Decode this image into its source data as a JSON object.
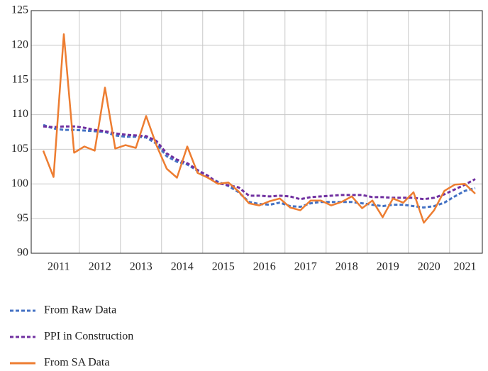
{
  "chart_data": {
    "type": "line",
    "categories": [
      "2011",
      null,
      null,
      null,
      "2012",
      null,
      null,
      null,
      "2013",
      null,
      null,
      null,
      "2014",
      null,
      null,
      null,
      "2015",
      null,
      null,
      null,
      "2016",
      null,
      null,
      null,
      "2017",
      null,
      null,
      null,
      "2018",
      null,
      null,
      null,
      "2019",
      null,
      null,
      null,
      "2020",
      null,
      null,
      null,
      "2021",
      null,
      null
    ],
    "series": [
      {
        "name": "From Raw Data",
        "color": "#4472c4",
        "dash": true,
        "values": [
          108.5,
          108.0,
          107.8,
          107.8,
          107.7,
          107.6,
          107.5,
          107.0,
          106.8,
          106.8,
          106.7,
          105.8,
          104.0,
          103.2,
          102.8,
          101.9,
          101.0,
          100.3,
          99.7,
          98.8,
          97.4,
          97.1,
          97.0,
          97.3,
          96.8,
          96.7,
          97.2,
          97.4,
          97.4,
          97.4,
          97.4,
          97.2,
          97.0,
          96.8,
          97.0,
          97.0,
          96.8,
          96.6,
          96.8,
          97.3,
          98.2,
          99.0,
          99.4
        ]
      },
      {
        "name": "PPI in Construction",
        "color": "#7030a0",
        "dash": true,
        "values": [
          108.3,
          108.2,
          108.3,
          108.3,
          108.1,
          107.8,
          107.6,
          107.3,
          107.1,
          107.0,
          106.9,
          106.2,
          104.4,
          103.5,
          103.0,
          102.0,
          101.2,
          100.1,
          99.8,
          99.5,
          98.3,
          98.3,
          98.2,
          98.3,
          98.2,
          97.8,
          98.1,
          98.2,
          98.3,
          98.4,
          98.4,
          98.4,
          98.1,
          98.1,
          98.0,
          98.0,
          98.0,
          97.8,
          98.0,
          98.5,
          99.2,
          99.9,
          100.7
        ]
      },
      {
        "name": "From SA Data",
        "color": "#ed7d31",
        "dash": false,
        "values": [
          104.8,
          101.0,
          121.6,
          104.5,
          105.4,
          104.8,
          113.9,
          105.1,
          105.6,
          105.2,
          109.8,
          105.6,
          102.2,
          100.9,
          105.4,
          101.6,
          100.9,
          100.0,
          100.2,
          98.9,
          97.2,
          96.9,
          97.5,
          97.9,
          96.6,
          96.2,
          97.6,
          97.6,
          96.9,
          97.4,
          98.2,
          96.5,
          97.6,
          95.2,
          97.9,
          97.3,
          98.8,
          94.4,
          96.2,
          99.0,
          99.9,
          100.0,
          98.6
        ]
      }
    ],
    "ylim": [
      90,
      125
    ],
    "yticks": [
      90,
      95,
      100,
      105,
      110,
      115,
      120,
      125
    ],
    "grid": true
  }
}
